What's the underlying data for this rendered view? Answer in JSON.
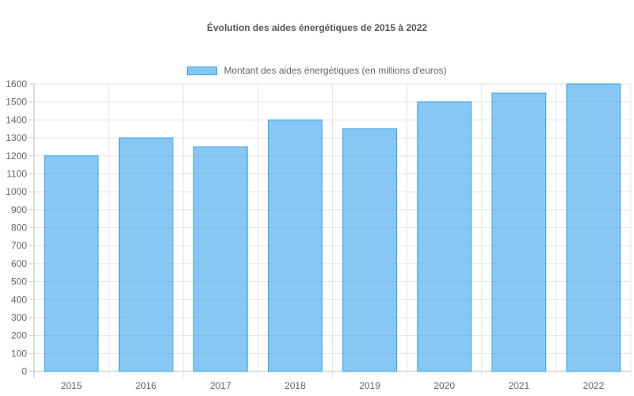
{
  "chart_data": {
    "type": "bar",
    "title": "Évolution des aides énergétiques de 2015 à 2022",
    "xlabel": "",
    "ylabel": "",
    "categories": [
      "2015",
      "2016",
      "2017",
      "2018",
      "2019",
      "2020",
      "2021",
      "2022"
    ],
    "series": [
      {
        "name": "Montant des aides énergétiques (en millions d'euros)",
        "values": [
          1200,
          1300,
          1250,
          1400,
          1350,
          1500,
          1550,
          1600
        ],
        "color": "#36a2eb",
        "fill": "rgba(54,162,235,0.6)"
      }
    ],
    "ylim": [
      0,
      1600
    ],
    "ytick_step": 100,
    "grid": true,
    "legend_position": "top"
  }
}
